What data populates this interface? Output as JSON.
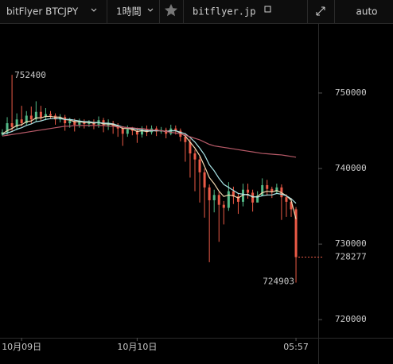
{
  "toolbar": {
    "symbol": "bitFlyer BTCJPY",
    "interval": "1時間",
    "site": "bitflyer.jp",
    "scale": "auto"
  },
  "chart_data": {
    "type": "candlestick",
    "categories": [
      null,
      null,
      null,
      null,
      "10月09日",
      null,
      null,
      null,
      null,
      null,
      null,
      null,
      null,
      null,
      null,
      null,
      null,
      null,
      null,
      null,
      null,
      null,
      null,
      null,
      null,
      null,
      null,
      null,
      "10月10日",
      null,
      null,
      null,
      null,
      null,
      null,
      null,
      null,
      null,
      null,
      null,
      null,
      null,
      null,
      null,
      null,
      null,
      null,
      null,
      null,
      null,
      null,
      null,
      null,
      null,
      null,
      null,
      null,
      null,
      null,
      null,
      null,
      "05:57"
    ],
    "open": [
      744500,
      744800,
      746000,
      745500,
      746500,
      746000,
      747000,
      746500,
      747500,
      746800,
      747200,
      747000,
      746500,
      746800,
      746000,
      746300,
      745800,
      746200,
      745900,
      746100,
      745800,
      746400,
      745700,
      746000,
      745600,
      745300,
      744600,
      745200,
      745000,
      744500,
      745200,
      744800,
      745300,
      744900,
      745100,
      744600,
      745300,
      745000,
      744200,
      743500,
      742000,
      741200,
      739500,
      737500,
      735800,
      736500,
      735200,
      734800,
      737000,
      736300,
      735600,
      737200,
      736800,
      735500,
      736400,
      737800,
      737300,
      736900,
      737500,
      736200,
      735600,
      734600
    ],
    "high": [
      745200,
      746800,
      752400,
      747300,
      748300,
      747600,
      748200,
      748900,
      748300,
      748000,
      747600,
      747300,
      747200,
      747100,
      746700,
      746600,
      746600,
      746500,
      746400,
      746500,
      746900,
      746700,
      746500,
      746300,
      746000,
      745600,
      745700,
      745500,
      745400,
      745600,
      745700,
      745700,
      745600,
      745500,
      745400,
      745800,
      745700,
      745300,
      744700,
      743900,
      742500,
      741600,
      740000,
      737900,
      737200,
      736900,
      735700,
      738200,
      737600,
      736700,
      738000,
      738000,
      737200,
      737000,
      738700,
      738500,
      737600,
      738000,
      737900,
      736600,
      736100,
      734900
    ],
    "low": [
      744300,
      744500,
      744900,
      745100,
      745600,
      745700,
      745900,
      746200,
      746300,
      746400,
      746600,
      745800,
      746100,
      745000,
      745400,
      744900,
      745400,
      745300,
      745500,
      745200,
      745400,
      744800,
      745100,
      744600,
      744200,
      743000,
      744200,
      744400,
      743400,
      744100,
      744300,
      744500,
      744300,
      744600,
      744000,
      744400,
      744500,
      743600,
      740900,
      738800,
      737000,
      735500,
      733500,
      727600,
      734200,
      730300,
      732600,
      734400,
      735300,
      734000,
      735000,
      736000,
      734300,
      735600,
      736600,
      736400,
      736100,
      736700,
      733200,
      733600,
      733600,
      724903
    ],
    "close": [
      744800,
      746000,
      745500,
      746500,
      746000,
      747000,
      746500,
      747500,
      746800,
      747200,
      747000,
      746500,
      746800,
      746000,
      746300,
      745800,
      746200,
      745900,
      746100,
      745800,
      746400,
      745700,
      746000,
      745600,
      745300,
      744600,
      745200,
      745000,
      744500,
      745200,
      744800,
      745300,
      744900,
      745100,
      744600,
      745300,
      745000,
      744200,
      743500,
      742000,
      741200,
      739500,
      737500,
      735800,
      736500,
      735200,
      734800,
      737000,
      736300,
      735600,
      737200,
      736800,
      735500,
      736400,
      737800,
      737300,
      736900,
      737500,
      736200,
      735600,
      734600,
      728277
    ],
    "up_color": "#53b987",
    "down_color": "#eb5a46",
    "lines": [
      {
        "color": "#f3d9b0",
        "values": [
          744600,
          745000,
          745300,
          745700,
          745800,
          746200,
          746300,
          746700,
          746700,
          746900,
          746900,
          746800,
          746800,
          746500,
          746400,
          746200,
          746200,
          746100,
          746100,
          746000,
          746100,
          745900,
          745900,
          745800,
          745600,
          745300,
          745300,
          745200,
          744900,
          745000,
          744900,
          745000,
          745000,
          745000,
          744900,
          745000,
          745000,
          744700,
          744300,
          743500,
          742700,
          741700,
          740300,
          738800,
          738000,
          737000,
          736300,
          736500,
          736400,
          736100,
          736500,
          736600,
          736200,
          736300,
          736800,
          737000,
          736900,
          737100,
          736800,
          736400,
          735800,
          733300
        ]
      },
      {
        "color": "#a9e4e6",
        "values": [
          744500,
          744700,
          744900,
          745200,
          745400,
          745700,
          745900,
          746200,
          746300,
          746500,
          746600,
          746600,
          746600,
          746500,
          746500,
          746400,
          746300,
          746200,
          746200,
          746100,
          746100,
          746000,
          746000,
          745900,
          745700,
          745500,
          745400,
          745300,
          745200,
          745100,
          745000,
          745000,
          745000,
          745000,
          744900,
          745000,
          745000,
          744800,
          744600,
          744100,
          743500,
          742700,
          741800,
          740500,
          739700,
          738700,
          737900,
          737500,
          737100,
          736700,
          736600,
          736500,
          736300,
          736200,
          736400,
          736500,
          736500,
          736700,
          736600,
          736400,
          736000,
          735400
        ]
      },
      {
        "color": "#b85a68",
        "values": [
          744300,
          744400,
          744500,
          744600,
          744700,
          744800,
          744900,
          745000,
          745100,
          745200,
          745300,
          745400,
          745500,
          745600,
          745600,
          745700,
          745700,
          745700,
          745700,
          745700,
          745700,
          745700,
          745600,
          745600,
          745500,
          745500,
          745400,
          745400,
          745300,
          745300,
          745200,
          745100,
          745100,
          745000,
          744900,
          744800,
          744700,
          744600,
          744400,
          744200,
          744000,
          743800,
          743500,
          743200,
          743000,
          742900,
          742800,
          742700,
          742600,
          742500,
          742400,
          742300,
          742200,
          742100,
          742000,
          741950,
          741900,
          741850,
          741800,
          741700,
          741600,
          741500
        ]
      }
    ],
    "ylim": [
      717600,
      759150
    ],
    "yticks": [
      720000,
      730000,
      740000,
      750000
    ]
  }
}
